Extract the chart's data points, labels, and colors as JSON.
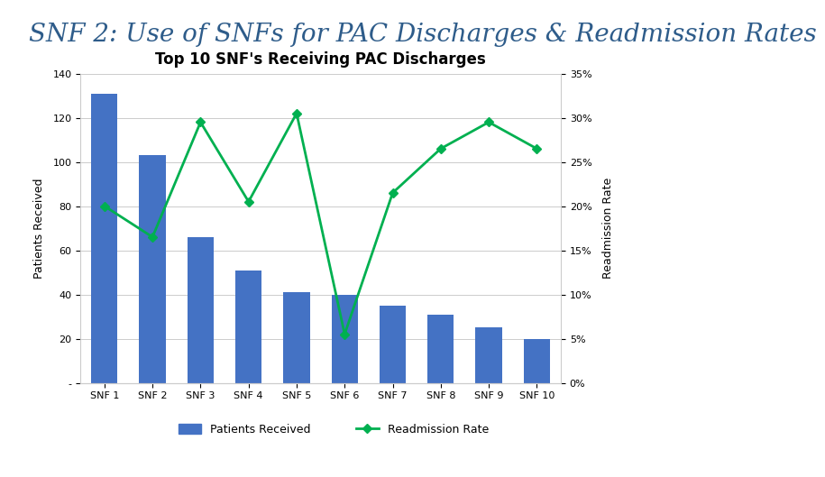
{
  "title_header": "SNF 2: Use of SNFs for PAC Discharges & Readmission Rates",
  "chart_title": "Top 10 SNF's Receiving PAC Discharges",
  "categories": [
    "SNF 1",
    "SNF 2",
    "SNF 3",
    "SNF 4",
    "SNF 5",
    "SNF 6",
    "SNF 7",
    "SNF 8",
    "SNF 9",
    "SNF 10"
  ],
  "patients_received": [
    131,
    103,
    66,
    51,
    41,
    40,
    35,
    31,
    25,
    20
  ],
  "readmission_rate": [
    0.2,
    0.165,
    0.295,
    0.205,
    0.305,
    0.055,
    0.215,
    0.265,
    0.295,
    0.265
  ],
  "bar_color": "#4472C4",
  "line_color": "#00B050",
  "left_ylabel": "Patients Received",
  "right_ylabel": "Readmission Rate",
  "left_ylim": [
    0,
    140
  ],
  "right_ylim": [
    0,
    0.35
  ],
  "left_yticks": [
    0,
    20,
    40,
    60,
    80,
    100,
    120,
    140
  ],
  "right_yticks": [
    0.0,
    0.05,
    0.1,
    0.15,
    0.2,
    0.25,
    0.3,
    0.35
  ],
  "header_line_color": "#4ABFDF",
  "header_text_color": "#2E5C8A",
  "header_fontsize": 20,
  "chart_title_fontsize": 12,
  "axis_label_fontsize": 9,
  "tick_fontsize": 8,
  "legend_label_bar": "Patients Received",
  "legend_label_line": "Readmission Rate",
  "background_color": "#FFFFFF",
  "footer_color": "#4ABFDF",
  "grid_color": "#CCCCCC"
}
